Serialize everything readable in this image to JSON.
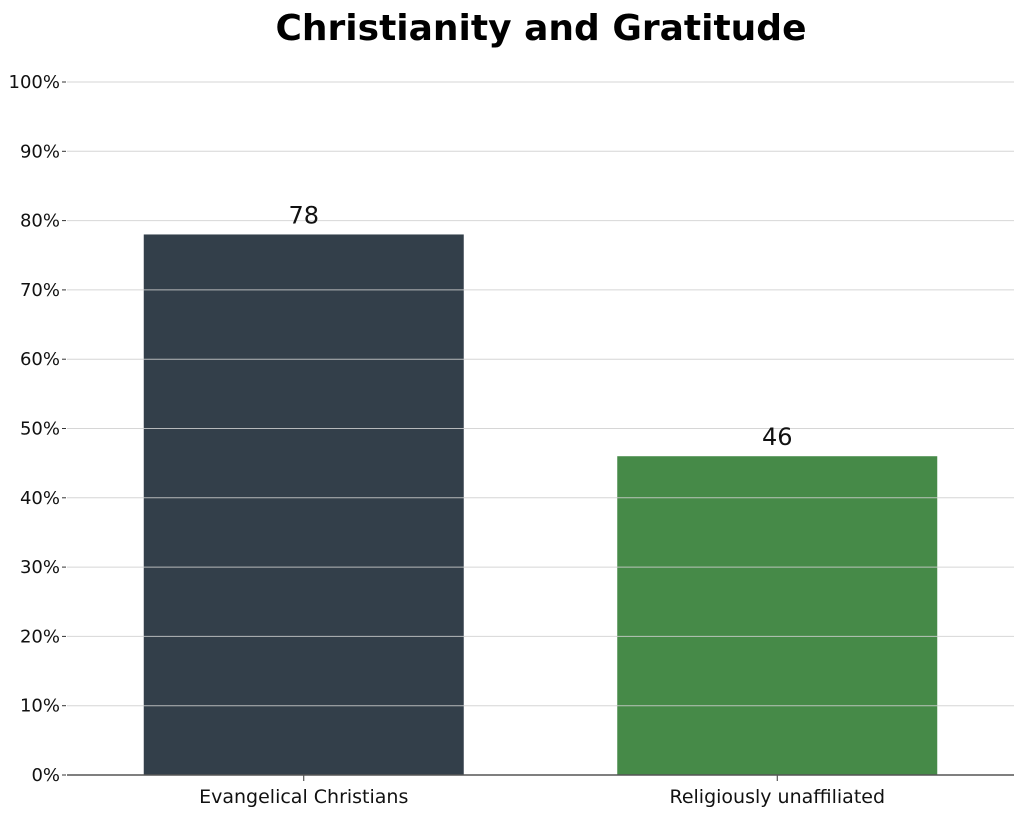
{
  "chart_data": {
    "type": "bar",
    "title": "Christianity and Gratitude",
    "categories": [
      "Evangelical Christians",
      "Religiously unaffiliated"
    ],
    "values": [
      78,
      46
    ],
    "data_labels": [
      "78",
      "46"
    ],
    "colors": [
      "#333f4a",
      "#468a48"
    ],
    "xlabel": "",
    "ylabel": "",
    "ylim": [
      0,
      100
    ],
    "yticks": [
      0,
      10,
      20,
      30,
      40,
      50,
      60,
      70,
      80,
      90,
      100
    ],
    "ytick_labels": [
      "0%",
      "10%",
      "20%",
      "30%",
      "40%",
      "50%",
      "60%",
      "70%",
      "80%",
      "90%",
      "100%"
    ],
    "grid": "horizontal",
    "legend": "none"
  }
}
